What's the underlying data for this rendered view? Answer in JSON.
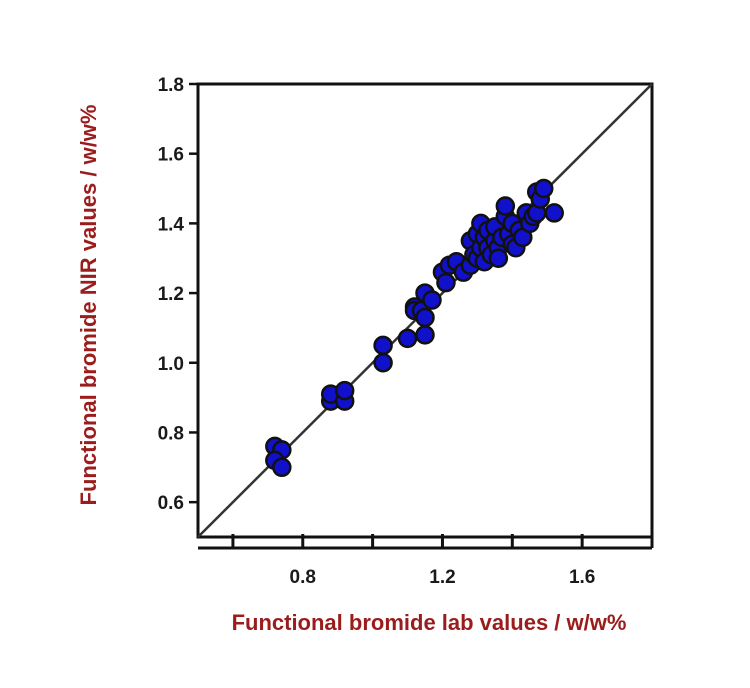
{
  "chart_data": {
    "type": "scatter",
    "title": "",
    "xlabel": "Functional bromide lab values / w/w%",
    "ylabel": "Functional bromide NIR values / w/w%",
    "xlim": [
      0.5,
      1.8
    ],
    "ylim": [
      0.5,
      1.8
    ],
    "xticks": [
      0.8,
      1.2,
      1.6
    ],
    "xtick_labels": [
      "0.8",
      "1.2",
      "1.6"
    ],
    "xminor_ticks": [
      0.6,
      1.0,
      1.4,
      1.8
    ],
    "yticks": [
      0.6,
      0.8,
      1.0,
      1.2,
      1.4,
      1.6,
      1.8
    ],
    "ytick_labels": [
      "0.6",
      "0.8",
      "1.0",
      "1.2",
      "1.4",
      "1.6",
      "1.8"
    ],
    "grid": false,
    "legend": "none",
    "reference_line": {
      "from": [
        0.5,
        0.5
      ],
      "to": [
        1.8,
        1.8
      ],
      "color": "#333333"
    },
    "marker": {
      "fill": "#1111cc",
      "edge": "#111111"
    },
    "axis_title_color": "#9b1c1c",
    "points": [
      [
        0.72,
        0.76
      ],
      [
        0.74,
        0.75
      ],
      [
        0.72,
        0.72
      ],
      [
        0.74,
        0.7
      ],
      [
        0.88,
        0.89
      ],
      [
        0.88,
        0.91
      ],
      [
        0.92,
        0.89
      ],
      [
        0.92,
        0.92
      ],
      [
        1.03,
        1.0
      ],
      [
        1.03,
        1.05
      ],
      [
        1.1,
        1.07
      ],
      [
        1.12,
        1.16
      ],
      [
        1.12,
        1.15
      ],
      [
        1.14,
        1.15
      ],
      [
        1.15,
        1.08
      ],
      [
        1.15,
        1.13
      ],
      [
        1.15,
        1.2
      ],
      [
        1.17,
        1.18
      ],
      [
        1.2,
        1.26
      ],
      [
        1.21,
        1.23
      ],
      [
        1.22,
        1.28
      ],
      [
        1.24,
        1.29
      ],
      [
        1.26,
        1.26
      ],
      [
        1.28,
        1.28
      ],
      [
        1.28,
        1.35
      ],
      [
        1.29,
        1.31
      ],
      [
        1.3,
        1.3
      ],
      [
        1.3,
        1.37
      ],
      [
        1.31,
        1.33
      ],
      [
        1.31,
        1.4
      ],
      [
        1.32,
        1.29
      ],
      [
        1.32,
        1.36
      ],
      [
        1.33,
        1.33
      ],
      [
        1.33,
        1.38
      ],
      [
        1.34,
        1.31
      ],
      [
        1.35,
        1.35
      ],
      [
        1.35,
        1.39
      ],
      [
        1.36,
        1.33
      ],
      [
        1.36,
        1.3
      ],
      [
        1.37,
        1.36
      ],
      [
        1.38,
        1.42
      ],
      [
        1.38,
        1.45
      ],
      [
        1.39,
        1.37
      ],
      [
        1.4,
        1.34
      ],
      [
        1.4,
        1.4
      ],
      [
        1.41,
        1.33
      ],
      [
        1.42,
        1.38
      ],
      [
        1.43,
        1.36
      ],
      [
        1.44,
        1.43
      ],
      [
        1.45,
        1.4
      ],
      [
        1.46,
        1.42
      ],
      [
        1.47,
        1.43
      ],
      [
        1.47,
        1.49
      ],
      [
        1.48,
        1.47
      ],
      [
        1.49,
        1.5
      ],
      [
        1.52,
        1.43
      ]
    ]
  }
}
